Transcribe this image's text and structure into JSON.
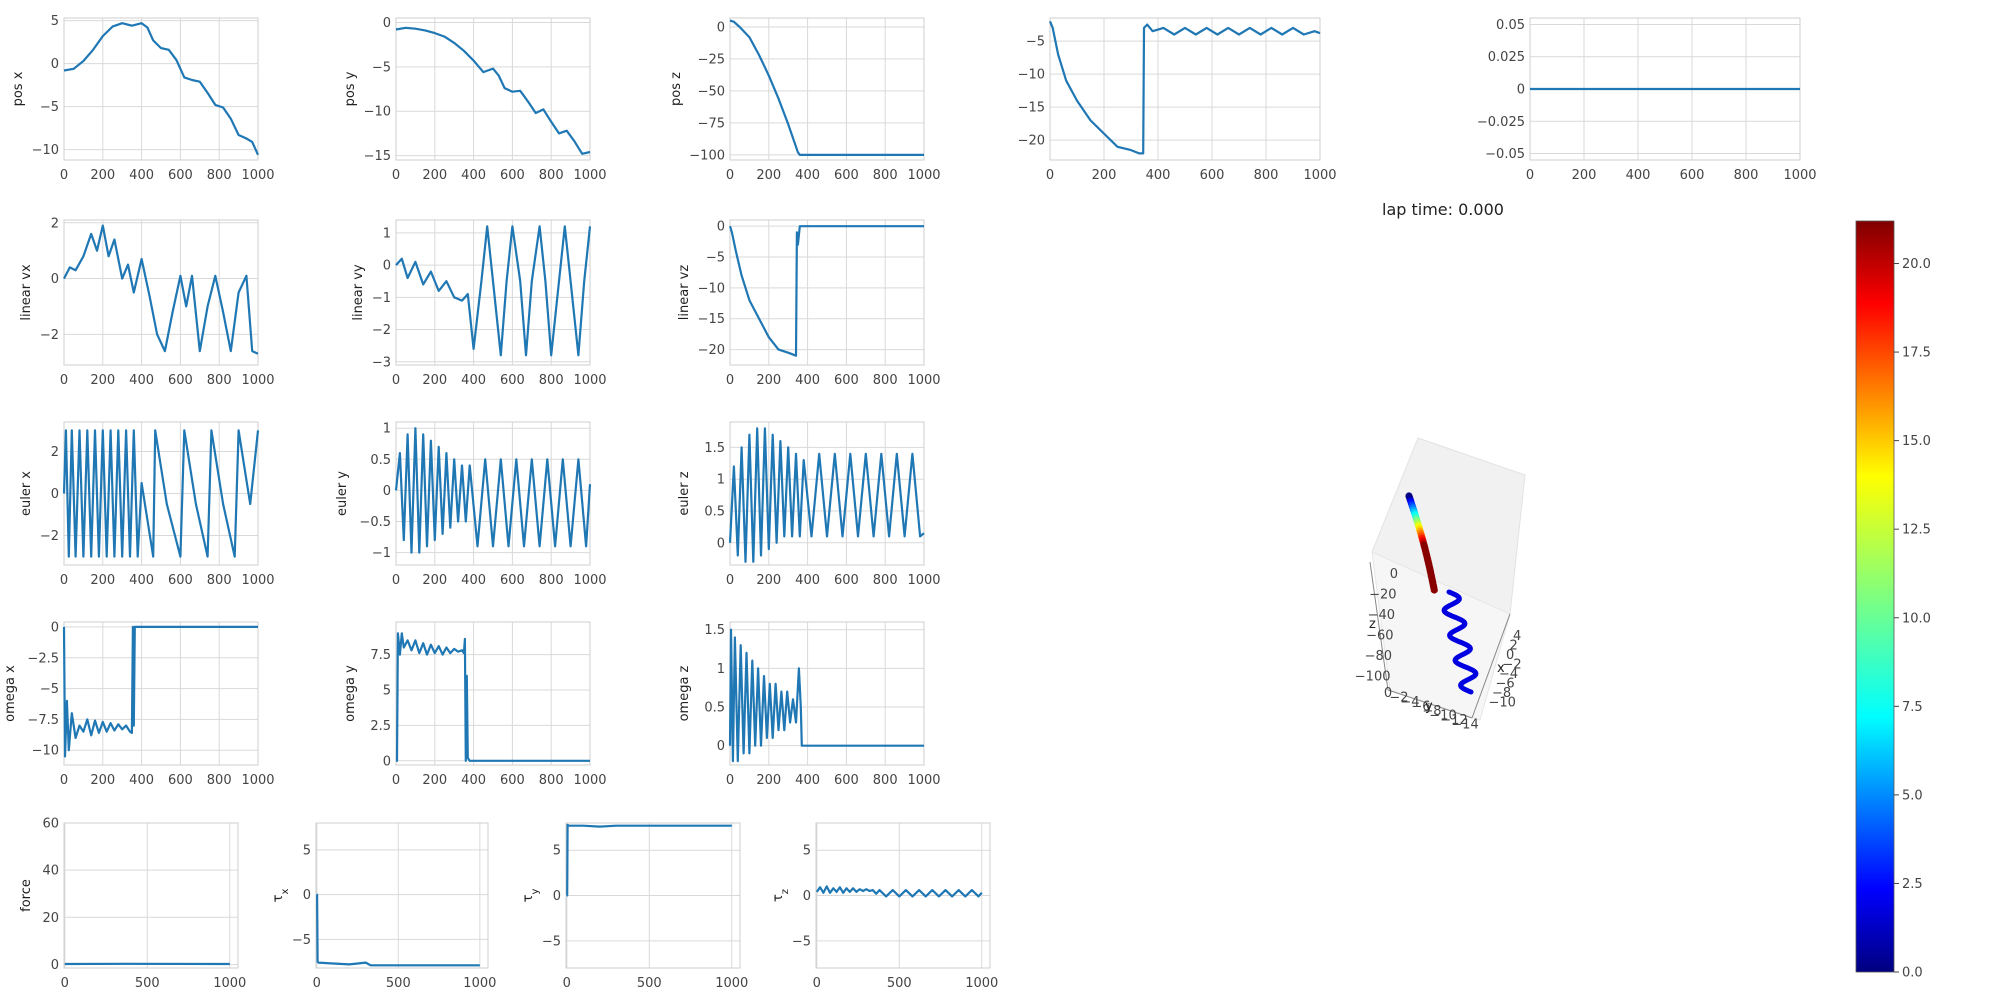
{
  "lap_label": "lap time: 0.000",
  "colors": {
    "series": "#1f77b4",
    "trajectory_start": "#0000ff",
    "trajectory_end": "#7f0000"
  },
  "chart_data": [
    {
      "type": "line",
      "ylabel": "pos x",
      "xlim": [
        0,
        1000
      ],
      "ylim": [
        -11.2,
        5.3
      ],
      "xticks": [
        0,
        200,
        400,
        600,
        800,
        1000
      ],
      "yticks": [
        5,
        0,
        -5,
        -10
      ],
      "x": [
        0,
        50,
        100,
        150,
        200,
        250,
        300,
        350,
        400,
        430,
        460,
        500,
        540,
        580,
        620,
        660,
        700,
        740,
        780,
        820,
        860,
        900,
        940,
        970,
        1000
      ],
      "y": [
        -0.8,
        -0.6,
        0.3,
        1.6,
        3.2,
        4.3,
        4.7,
        4.4,
        4.7,
        4.2,
        2.7,
        1.8,
        1.6,
        0.4,
        -1.6,
        -1.9,
        -2.1,
        -3.4,
        -4.8,
        -5.1,
        -6.4,
        -8.3,
        -8.7,
        -9.1,
        -10.6
      ]
    },
    {
      "type": "line",
      "ylabel": "pos y",
      "xlim": [
        0,
        1000
      ],
      "ylim": [
        -15.5,
        0.5
      ],
      "xticks": [
        0,
        200,
        400,
        600,
        800,
        1000
      ],
      "yticks": [
        0,
        -5,
        -10,
        -15
      ],
      "x": [
        0,
        50,
        100,
        150,
        200,
        250,
        300,
        350,
        400,
        450,
        500,
        530,
        560,
        600,
        640,
        680,
        720,
        760,
        800,
        840,
        880,
        920,
        960,
        1000
      ],
      "y": [
        -0.8,
        -0.6,
        -0.7,
        -0.9,
        -1.2,
        -1.6,
        -2.3,
        -3.2,
        -4.3,
        -5.6,
        -5.2,
        -6.0,
        -7.4,
        -7.8,
        -7.7,
        -8.9,
        -10.2,
        -9.8,
        -11.2,
        -12.5,
        -12.2,
        -13.4,
        -14.8,
        -14.6
      ]
    },
    {
      "type": "line",
      "ylabel": "pos z",
      "xlim": [
        0,
        1000
      ],
      "ylim": [
        -104,
        7
      ],
      "xticks": [
        0,
        200,
        400,
        600,
        800,
        1000
      ],
      "yticks": [
        0,
        -25,
        -50,
        -75,
        -100
      ],
      "x": [
        0,
        20,
        50,
        100,
        150,
        200,
        250,
        300,
        350,
        360,
        400,
        600,
        800,
        1000
      ],
      "y": [
        5,
        4,
        0,
        -8,
        -22,
        -38,
        -56,
        -76,
        -98,
        -100,
        -100,
        -100,
        -100,
        -100
      ]
    },
    {
      "type": "line",
      "ylabel": "",
      "xlim": [
        0,
        1000
      ],
      "ylim": [
        -23,
        -1.5
      ],
      "xticks": [
        0,
        200,
        400,
        600,
        800,
        1000
      ],
      "yticks": [
        -5,
        -10,
        -15,
        -20
      ],
      "x": [
        0,
        10,
        30,
        60,
        100,
        150,
        200,
        250,
        300,
        330,
        345,
        348,
        360,
        380,
        420,
        460,
        500,
        540,
        580,
        620,
        660,
        700,
        740,
        780,
        820,
        860,
        900,
        940,
        980,
        1000
      ],
      "y": [
        -2,
        -3,
        -7,
        -11,
        -14,
        -17,
        -19,
        -21,
        -21.5,
        -22,
        -22,
        -3,
        -2.5,
        -3.5,
        -3,
        -4,
        -3,
        -4,
        -3,
        -4,
        -3,
        -4,
        -3,
        -4,
        -3,
        -4,
        -3,
        -4,
        -3.5,
        -3.8
      ]
    },
    {
      "type": "line",
      "ylabel": "",
      "xlim": [
        0,
        1000
      ],
      "ylim": [
        -0.055,
        0.055
      ],
      "xticks": [
        0,
        200,
        400,
        600,
        800,
        1000
      ],
      "yticks": [
        0.05,
        0.025,
        0,
        -0.025,
        -0.05
      ],
      "x": [
        0,
        1000
      ],
      "y": [
        0,
        0
      ]
    },
    {
      "type": "line",
      "ylabel": "linear vx",
      "xlim": [
        0,
        1000
      ],
      "ylim": [
        -3.1,
        2.1
      ],
      "xticks": [
        0,
        200,
        400,
        600,
        800,
        1000
      ],
      "yticks": [
        2,
        0,
        -2
      ],
      "x": [
        0,
        30,
        60,
        100,
        140,
        170,
        200,
        230,
        260,
        300,
        330,
        360,
        400,
        440,
        480,
        520,
        560,
        600,
        630,
        660,
        700,
        740,
        780,
        820,
        860,
        900,
        940,
        970,
        1000
      ],
      "y": [
        0,
        0.4,
        0.3,
        0.8,
        1.6,
        1.0,
        1.9,
        0.8,
        1.4,
        0.0,
        0.5,
        -0.5,
        0.7,
        -0.6,
        -2.0,
        -2.6,
        -1.2,
        0.1,
        -1.0,
        0.1,
        -2.6,
        -1.0,
        0.1,
        -1.2,
        -2.6,
        -0.5,
        0.1,
        -2.6,
        -2.7
      ]
    },
    {
      "type": "line",
      "ylabel": "linear vy",
      "xlim": [
        0,
        1000
      ],
      "ylim": [
        -3.1,
        1.4
      ],
      "xticks": [
        0,
        200,
        400,
        600,
        800,
        1000
      ],
      "yticks": [
        1,
        0,
        -1,
        -2,
        -3
      ],
      "x": [
        0,
        30,
        60,
        100,
        140,
        180,
        220,
        260,
        300,
        340,
        370,
        400,
        440,
        470,
        500,
        540,
        570,
        600,
        640,
        670,
        700,
        740,
        770,
        800,
        840,
        870,
        900,
        940,
        970,
        1000
      ],
      "y": [
        0,
        0.2,
        -0.4,
        0.1,
        -0.6,
        -0.2,
        -0.8,
        -0.5,
        -1.0,
        -1.1,
        -0.9,
        -2.6,
        -0.5,
        1.2,
        -0.5,
        -2.8,
        -0.5,
        1.2,
        -0.5,
        -2.8,
        -0.5,
        1.2,
        -0.5,
        -2.8,
        -0.5,
        1.2,
        -0.5,
        -2.8,
        -0.5,
        1.2
      ]
    },
    {
      "type": "line",
      "ylabel": "linear vz",
      "xlim": [
        0,
        1000
      ],
      "ylim": [
        -22.5,
        1
      ],
      "xticks": [
        0,
        200,
        400,
        600,
        800,
        1000
      ],
      "yticks": [
        0,
        -5,
        -10,
        -15,
        -20
      ],
      "x": [
        0,
        10,
        30,
        60,
        100,
        150,
        200,
        250,
        300,
        340,
        345,
        350,
        360,
        400,
        600,
        800,
        1000
      ],
      "y": [
        0,
        -1,
        -4,
        -8,
        -12,
        -15,
        -18,
        -20,
        -20.5,
        -21,
        -1,
        -3,
        0,
        0,
        0,
        0,
        0
      ]
    },
    {
      "type": "line",
      "ylabel": "euler x",
      "xlim": [
        0,
        1000
      ],
      "ylim": [
        -3.4,
        3.4
      ],
      "xticks": [
        0,
        200,
        400,
        600,
        800,
        1000
      ],
      "yticks": [
        2,
        0,
        -2
      ],
      "x": [
        0,
        10,
        25,
        40,
        60,
        80,
        100,
        120,
        140,
        160,
        180,
        200,
        220,
        240,
        260,
        280,
        300,
        320,
        340,
        360,
        380,
        400,
        460,
        470,
        530,
        600,
        620,
        680,
        740,
        760,
        820,
        880,
        900,
        960,
        1000
      ],
      "y": [
        0,
        3,
        -3,
        3,
        -3,
        3,
        -3,
        3,
        -3,
        3,
        -3,
        3,
        -3,
        3,
        -3,
        3,
        -3,
        3,
        -3,
        3,
        -3,
        0.5,
        -3,
        3,
        -0.5,
        -3,
        3,
        -0.5,
        -3,
        3,
        -0.5,
        -3,
        3,
        -0.5,
        3
      ]
    },
    {
      "type": "line",
      "ylabel": "euler y",
      "xlim": [
        0,
        1000
      ],
      "ylim": [
        -1.2,
        1.1
      ],
      "xticks": [
        0,
        200,
        400,
        600,
        800,
        1000
      ],
      "yticks": [
        1,
        0.5,
        0,
        -0.5,
        -1
      ],
      "x": [
        0,
        20,
        40,
        60,
        80,
        100,
        120,
        140,
        160,
        180,
        200,
        220,
        240,
        260,
        280,
        300,
        320,
        340,
        360,
        380,
        420,
        460,
        500,
        540,
        580,
        620,
        660,
        700,
        740,
        780,
        820,
        860,
        900,
        940,
        980,
        1000
      ],
      "y": [
        0,
        0.6,
        -0.8,
        0.9,
        -1.0,
        1.0,
        -1.0,
        0.9,
        -0.9,
        0.8,
        -0.8,
        0.7,
        -0.7,
        0.6,
        -0.6,
        0.5,
        -0.5,
        0.4,
        -0.5,
        0.4,
        -0.9,
        0.5,
        -0.9,
        0.5,
        -0.9,
        0.5,
        -0.9,
        0.5,
        -0.9,
        0.5,
        -0.9,
        0.5,
        -0.9,
        0.5,
        -0.9,
        0.1
      ]
    },
    {
      "type": "line",
      "ylabel": "euler z",
      "xlim": [
        0,
        1000
      ],
      "ylim": [
        -0.35,
        1.9
      ],
      "xticks": [
        0,
        200,
        400,
        600,
        800,
        1000
      ],
      "yticks": [
        1.5,
        1,
        0.5,
        0
      ],
      "x": [
        0,
        20,
        40,
        60,
        80,
        100,
        120,
        140,
        160,
        180,
        200,
        220,
        240,
        260,
        280,
        300,
        320,
        340,
        360,
        380,
        420,
        460,
        500,
        540,
        580,
        620,
        660,
        700,
        740,
        780,
        820,
        860,
        900,
        940,
        980,
        1000
      ],
      "y": [
        0,
        1.2,
        -0.2,
        1.5,
        -0.3,
        1.7,
        -0.3,
        1.8,
        -0.2,
        1.8,
        -0.1,
        1.7,
        0,
        1.6,
        0.1,
        1.5,
        0.1,
        1.4,
        0.1,
        1.3,
        0.1,
        1.4,
        0.1,
        1.4,
        0.1,
        1.4,
        0.1,
        1.4,
        0.1,
        1.4,
        0.1,
        1.4,
        0.1,
        1.4,
        0.1,
        0.15
      ]
    },
    {
      "type": "line",
      "ylabel": "omega x",
      "xlim": [
        0,
        1000
      ],
      "ylim": [
        -11.2,
        0.4
      ],
      "xticks": [
        0,
        200,
        400,
        600,
        800,
        1000
      ],
      "yticks": [
        0,
        -2.5,
        -5,
        -7.5,
        -10
      ],
      "x": [
        0,
        5,
        15,
        25,
        40,
        60,
        80,
        100,
        120,
        140,
        160,
        180,
        200,
        220,
        240,
        260,
        280,
        300,
        320,
        340,
        350,
        355,
        360,
        365,
        370,
        400,
        600,
        800,
        1000
      ],
      "y": [
        0,
        -10.5,
        -6,
        -10,
        -7,
        -9,
        -8,
        -8.5,
        -7.5,
        -8.8,
        -7.6,
        -8.6,
        -7.7,
        -8.5,
        -7.8,
        -8.4,
        -7.9,
        -8.3,
        -8,
        -8.5,
        -8.6,
        0,
        -8,
        0,
        0,
        0,
        0,
        0,
        0
      ]
    },
    {
      "type": "line",
      "ylabel": "omega y",
      "xlim": [
        0,
        1000
      ],
      "ylim": [
        -0.3,
        9.8
      ],
      "xticks": [
        0,
        200,
        400,
        600,
        800,
        1000
      ],
      "yticks": [
        0,
        2.5,
        5,
        7.5
      ],
      "x": [
        0,
        5,
        10,
        20,
        30,
        40,
        60,
        80,
        100,
        120,
        140,
        160,
        180,
        200,
        220,
        240,
        260,
        280,
        300,
        320,
        340,
        350,
        355,
        360,
        365,
        370,
        380,
        400,
        600,
        800,
        1000
      ],
      "y": [
        0,
        0,
        9,
        7.5,
        9,
        8,
        8.5,
        7.8,
        8.5,
        7.6,
        8.3,
        7.5,
        8.2,
        7.6,
        8.1,
        7.5,
        8,
        7.6,
        7.9,
        7.7,
        7.8,
        7.6,
        8.6,
        0,
        6,
        0.2,
        0,
        0,
        0,
        0,
        0
      ]
    },
    {
      "type": "line",
      "ylabel": "omega z",
      "xlim": [
        0,
        1000
      ],
      "ylim": [
        -0.25,
        1.6
      ],
      "xticks": [
        0,
        200,
        400,
        600,
        800,
        1000
      ],
      "yticks": [
        1.5,
        1,
        0.5,
        0
      ],
      "x": [
        0,
        5,
        15,
        25,
        40,
        55,
        70,
        85,
        100,
        115,
        130,
        145,
        160,
        175,
        190,
        205,
        220,
        235,
        250,
        265,
        280,
        295,
        310,
        325,
        340,
        355,
        365,
        370,
        380,
        400,
        600,
        800,
        1000
      ],
      "y": [
        0,
        1.5,
        -0.2,
        1.4,
        -0.2,
        1.3,
        -0.1,
        1.2,
        -0.1,
        1.1,
        0,
        1.0,
        0,
        0.9,
        0.1,
        0.8,
        0.1,
        0.8,
        0.2,
        0.7,
        0.2,
        0.7,
        0.3,
        0.6,
        0.3,
        1.0,
        0.5,
        0,
        0,
        0,
        0,
        0,
        0
      ]
    },
    {
      "type": "line",
      "ylabel": "force",
      "xlim": [
        -5,
        1050
      ],
      "ylim": [
        -1.5,
        60
      ],
      "xticks": [
        0,
        500,
        1000
      ],
      "yticks": [
        0,
        20,
        40,
        60
      ],
      "x": [
        0,
        350,
        1000
      ],
      "y": [
        0.2,
        0.3,
        0.2
      ]
    },
    {
      "type": "line",
      "ylabel": "τx",
      "xlim": [
        -5,
        1050
      ],
      "ylim": [
        -8.2,
        8
      ],
      "xticks": [
        0,
        500,
        1000
      ],
      "yticks": [
        5,
        0,
        -5
      ],
      "x": [
        0,
        2,
        5,
        10,
        100,
        200,
        300,
        330,
        400,
        600,
        800,
        1000
      ],
      "y": [
        0,
        0,
        -7.5,
        -7.6,
        -7.7,
        -7.8,
        -7.6,
        -7.9,
        -7.9,
        -7.9,
        -7.9,
        -7.9
      ]
    },
    {
      "type": "line",
      "ylabel": "τy",
      "xlim": [
        -5,
        1050
      ],
      "ylim": [
        -8,
        8
      ],
      "xticks": [
        0,
        500,
        1000
      ],
      "yticks": [
        5,
        0,
        -5
      ],
      "x": [
        0,
        2,
        5,
        10,
        100,
        200,
        300,
        350,
        400,
        600,
        800,
        1000
      ],
      "y": [
        0,
        0,
        7.8,
        7.7,
        7.7,
        7.6,
        7.7,
        7.7,
        7.7,
        7.7,
        7.7,
        7.7
      ]
    },
    {
      "type": "line",
      "ylabel": "τz",
      "xlim": [
        -5,
        1050
      ],
      "ylim": [
        -8,
        8
      ],
      "xticks": [
        0,
        500,
        1000
      ],
      "yticks": [
        5,
        0,
        -5
      ],
      "x": [
        0,
        20,
        40,
        60,
        80,
        100,
        120,
        140,
        160,
        180,
        200,
        220,
        240,
        260,
        280,
        300,
        320,
        340,
        360,
        380,
        420,
        460,
        500,
        540,
        580,
        620,
        660,
        700,
        740,
        780,
        820,
        860,
        900,
        940,
        980,
        1000
      ],
      "y": [
        0.4,
        0.9,
        0.3,
        1.0,
        0.3,
        0.8,
        0.4,
        0.9,
        0.3,
        0.8,
        0.4,
        0.8,
        0.4,
        0.7,
        0.5,
        0.7,
        0.5,
        0.6,
        0.2,
        0.6,
        -0.1,
        0.6,
        -0.1,
        0.6,
        -0.1,
        0.6,
        -0.1,
        0.6,
        -0.1,
        0.6,
        -0.1,
        0.6,
        -0.1,
        0.6,
        -0.1,
        0.3
      ]
    },
    {
      "type": "scatter",
      "ylabel": "z",
      "xlabel": "y",
      "zlabel": "x",
      "z_ticks": [
        0,
        -20,
        -40,
        -60,
        -80,
        -100
      ],
      "y_ticks": [
        0,
        -2,
        -4,
        -6,
        -8,
        -10,
        -12,
        -14
      ],
      "x_ticks": [
        4,
        2,
        0,
        -2,
        -4,
        -6,
        -8,
        -10
      ],
      "x": [
        -0.8,
        -0.6,
        0.3,
        1.6,
        3.2,
        4.3,
        4.7,
        4.4,
        4.7,
        2.7,
        1.6,
        -1.6,
        -2.1,
        -4.8,
        -6.4,
        -8.7,
        -10.6
      ],
      "y": [
        -0.8,
        -0.6,
        -0.7,
        -0.9,
        -1.2,
        -1.6,
        -2.3,
        -3.2,
        -4.3,
        -5.6,
        -6.0,
        -7.8,
        -10.2,
        -11.2,
        -12.2,
        -13.4,
        -14.6
      ],
      "z": [
        5,
        0,
        -8,
        -22,
        -38,
        -56,
        -76,
        -98,
        -100,
        -100,
        -100,
        -100,
        -100,
        -100,
        -100,
        -100,
        -100
      ],
      "speed": [
        0,
        1,
        8,
        14,
        18,
        20,
        21,
        21,
        2,
        2,
        2,
        2,
        2,
        2,
        2,
        2,
        2
      ]
    },
    {
      "type": "heatmap",
      "colorbar": true,
      "colormap": "jet",
      "clim": [
        0,
        21.2
      ],
      "ticks": [
        0,
        2.5,
        5,
        7.5,
        10,
        12.5,
        15,
        17.5,
        20
      ]
    }
  ]
}
